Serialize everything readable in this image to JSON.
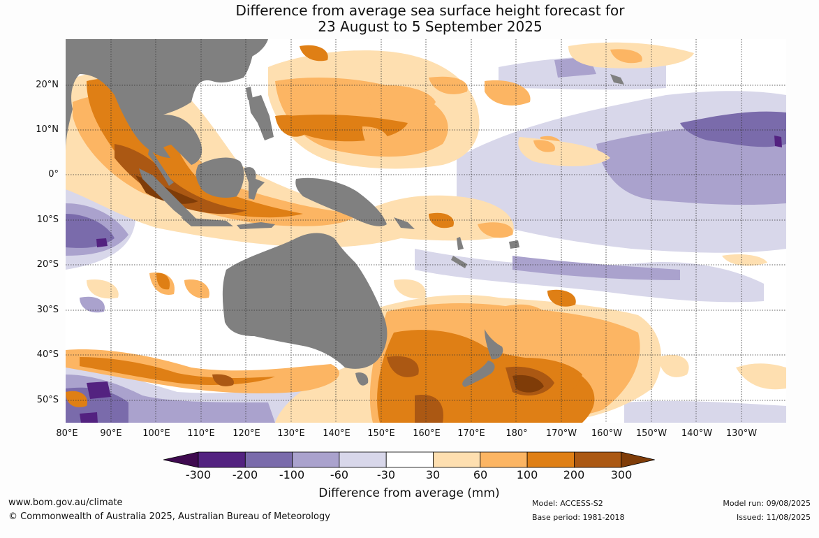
{
  "title": {
    "line1": "Difference from average sea surface height forecast for",
    "line2": "23 August to 5 September 2025"
  },
  "map": {
    "lat_labels": [
      "20°N",
      "10°N",
      "0°",
      "10°S",
      "20°S",
      "30°S",
      "40°S",
      "50°S"
    ],
    "lon_labels": [
      "80°E",
      "90°E",
      "100°E",
      "110°E",
      "120°E",
      "130°E",
      "140°E",
      "150°E",
      "160°E",
      "170°E",
      "180°",
      "170°W",
      "160°W",
      "150°W",
      "140°W",
      "130°W"
    ],
    "land_color": "#808080",
    "ocean_background": "#ffffff",
    "grid_style": "dotted"
  },
  "colorbar": {
    "tick_labels": [
      "-300",
      "-200",
      "-100",
      "-60",
      "-30",
      "30",
      "60",
      "100",
      "200",
      "300"
    ],
    "colors": [
      "#3f0a50",
      "#532280",
      "#7a6bab",
      "#aaa2cd",
      "#d8d7ea",
      "#ffffff",
      "#fedfb0",
      "#fcb563",
      "#df7f15",
      "#ab5813",
      "#7f3c08"
    ],
    "label": "Difference from average (mm)"
  },
  "footer": {
    "website": "www.bom.gov.au/climate",
    "copyright": "© Commonwealth of Australia 2025, Australian Bureau of Meteorology",
    "model": "Model: ACCESS-S2",
    "base_period": "Base period: 1981-2018",
    "model_run": "Model run: 09/08/2025",
    "issued": "Issued: 11/08/2025"
  }
}
